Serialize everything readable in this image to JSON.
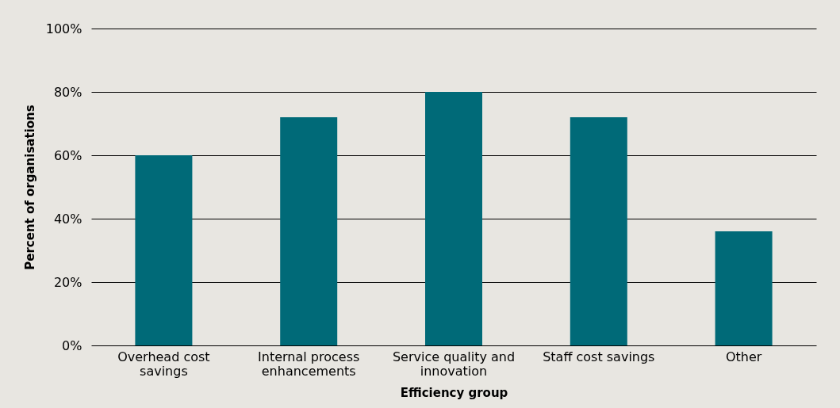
{
  "chart_data": {
    "type": "bar",
    "xlabel": "Efficiency group",
    "ylabel": "Percent of organisations",
    "categories": [
      "Overhead cost savings",
      "Internal process enhancements",
      "Service quality and innovation",
      "Staff cost savings",
      "Other"
    ],
    "values": [
      60,
      72,
      80,
      72,
      36
    ],
    "color": "#006a78",
    "ylim": [
      0,
      100
    ],
    "yticks": [
      {
        "value": 0,
        "label": "0%"
      },
      {
        "value": 20,
        "label": "20%"
      },
      {
        "value": 40,
        "label": "40%"
      },
      {
        "value": 60,
        "label": "60%"
      },
      {
        "value": 80,
        "label": "80%"
      },
      {
        "value": 100,
        "label": "100%"
      }
    ],
    "grid": "y"
  }
}
